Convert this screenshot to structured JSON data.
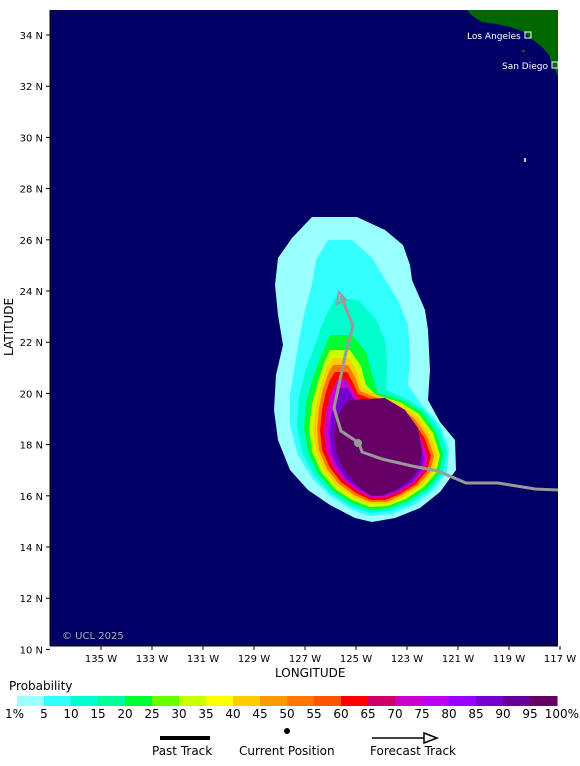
{
  "map": {
    "lat_labels": [
      "34 N",
      "32 N",
      "30 N",
      "28 N",
      "26 N",
      "24 N",
      "22 N",
      "20 N",
      "18 N",
      "16 N",
      "14 N",
      "12 N",
      "10 N"
    ],
    "lon_labels": [
      "135 W",
      "133 W",
      "131 W",
      "129 W",
      "127 W",
      "125 W",
      "123 W",
      "121 W",
      "119 W",
      "117 W"
    ],
    "x_axis_title": "LONGITUDE",
    "y_axis_title": "LATITUDE",
    "watermark": "© UCL 2025",
    "cities": [
      {
        "name": "Los Angeles"
      },
      {
        "name": "San Diego"
      }
    ],
    "colors": {
      "ocean": "#000066",
      "land": "#006600",
      "track": "#999999"
    }
  },
  "legend": {
    "title": "Probability",
    "levels": [
      "1%",
      "5",
      "10",
      "15",
      "20",
      "25",
      "30",
      "35",
      "40",
      "45",
      "50",
      "55",
      "60",
      "65",
      "70",
      "75",
      "80",
      "85",
      "90",
      "95",
      "100%"
    ],
    "colors": [
      "#99ffff",
      "#33ffff",
      "#00ffcc",
      "#00ff99",
      "#00ff33",
      "#66ff00",
      "#ccff00",
      "#ffff00",
      "#ffcc00",
      "#ff9900",
      "#ff7700",
      "#ff5500",
      "#ff0000",
      "#cc0066",
      "#cc00cc",
      "#bb00ee",
      "#9900ff",
      "#7700cc",
      "#660099",
      "#660066"
    ]
  },
  "key": {
    "past_track": "Past Track",
    "current_position": "Current Position",
    "forecast_track": "Forecast Track"
  }
}
